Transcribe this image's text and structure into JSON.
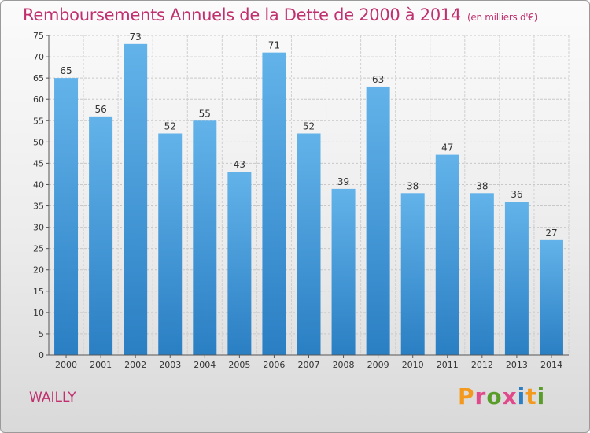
{
  "header": {
    "title": "Remboursements Annuels de la Dette de 2000 à 2014",
    "unit": "(en milliers d'€)"
  },
  "footer": {
    "commune": "WAILLY",
    "logo_text": "Proxiti"
  },
  "colors": {
    "title": "#c0306e",
    "bar_top": "#63b3ea",
    "bar_bottom": "#2a7fc3",
    "logo_letters": [
      "#f39a1e",
      "#e14a8a",
      "#5a9c2a",
      "#e14a8a",
      "#2a7fc3",
      "#f39a1e",
      "#5a9c2a"
    ]
  },
  "chart_data": {
    "type": "bar",
    "categories": [
      "2000",
      "2001",
      "2002",
      "2003",
      "2004",
      "2005",
      "2006",
      "2007",
      "2008",
      "2009",
      "2010",
      "2011",
      "2012",
      "2013",
      "2014"
    ],
    "values": [
      65,
      56,
      73,
      52,
      55,
      43,
      71,
      52,
      39,
      63,
      38,
      47,
      38,
      36,
      27
    ],
    "title": "Remboursements Annuels de la Dette de 2000 à 2014",
    "xlabel": "",
    "ylabel": "",
    "ylim": [
      0,
      75
    ],
    "yticks": [
      0,
      5,
      10,
      15,
      20,
      25,
      30,
      35,
      40,
      45,
      50,
      55,
      60,
      65,
      70,
      75
    ],
    "grid": true,
    "data_labels": true
  }
}
